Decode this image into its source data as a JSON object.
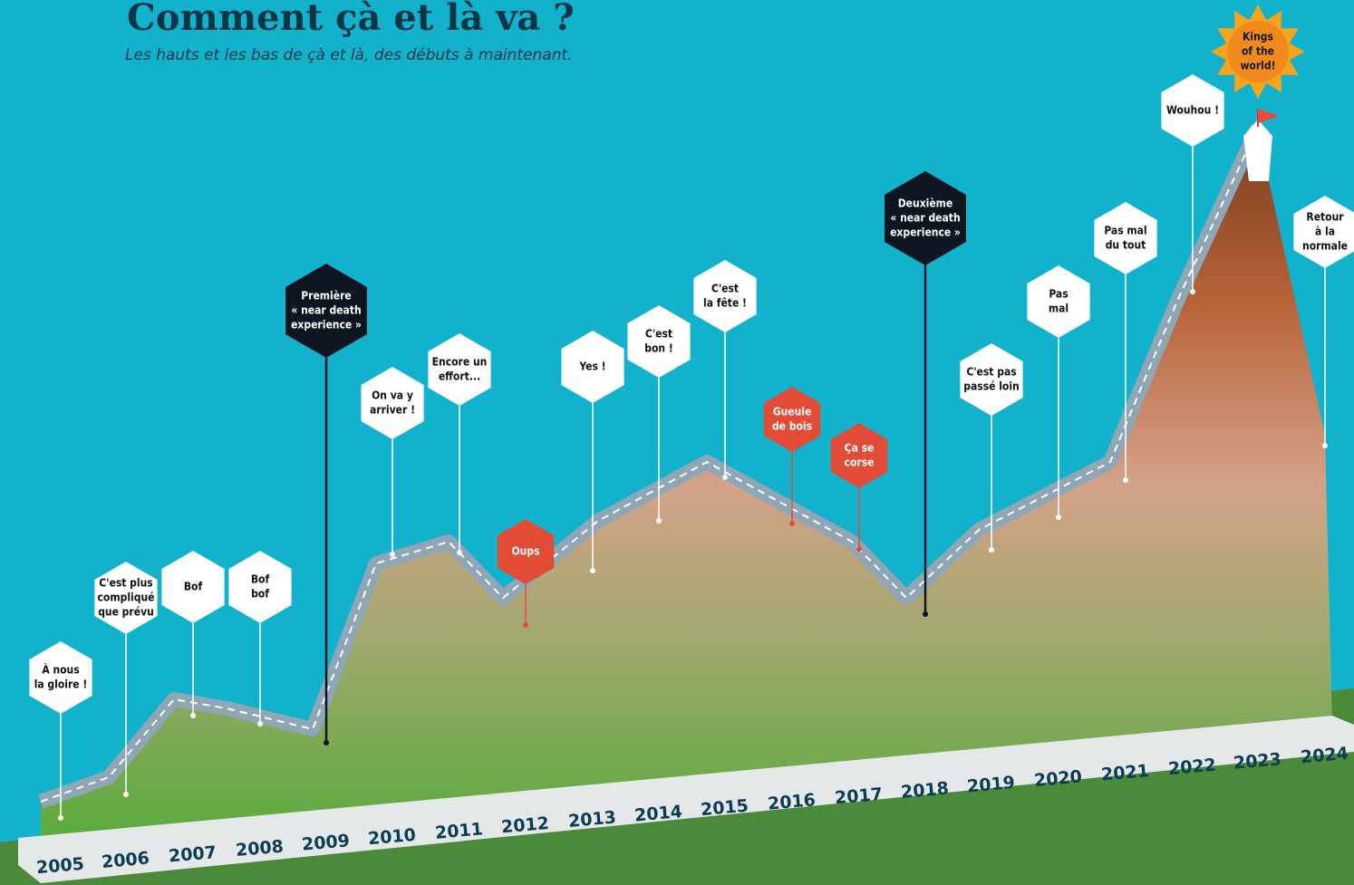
{
  "title": "Comment çà et là va ?",
  "subtitle": "Les hauts et les bas de çà et là, des débuts à maintenant.",
  "milestones": [
    {
      "year": "2005",
      "label": [
        "À nous",
        "la gloire !"
      ],
      "style": "light"
    },
    {
      "year": "2006",
      "label": [
        "C'est plus",
        "compliqué",
        "que prévu"
      ],
      "style": "light"
    },
    {
      "year": "2007",
      "label": [
        "Bof"
      ],
      "style": "light"
    },
    {
      "year": "2008",
      "label": [
        "Bof",
        "bof"
      ],
      "style": "light"
    },
    {
      "year": "2009",
      "label": [
        "Première",
        "« near death",
        "experience »"
      ],
      "style": "dark"
    },
    {
      "year": "2010",
      "label": [
        "On va y",
        "arriver !"
      ],
      "style": "light"
    },
    {
      "year": "2011",
      "label": [
        "Encore un",
        "effort..."
      ],
      "style": "light"
    },
    {
      "year": "2012",
      "label": [
        "Oups"
      ],
      "style": "red"
    },
    {
      "year": "2013",
      "label": [
        "Yes !"
      ],
      "style": "light"
    },
    {
      "year": "2014",
      "label": [
        "C'est",
        "bon !"
      ],
      "style": "light"
    },
    {
      "year": "2015",
      "label": [
        "C'est",
        "la fête !"
      ],
      "style": "light"
    },
    {
      "year": "2016",
      "label": [
        "Gueule",
        "de bois"
      ],
      "style": "red"
    },
    {
      "year": "2017",
      "label": [
        "Ça se",
        "corse"
      ],
      "style": "red"
    },
    {
      "year": "2018",
      "label": [
        "Deuxième",
        "« near death",
        "experience »"
      ],
      "style": "dark"
    },
    {
      "year": "2019",
      "label": [
        "C'est pas",
        "passé loin"
      ],
      "style": "light"
    },
    {
      "year": "2020",
      "label": [
        "Pas",
        "mal"
      ],
      "style": "light"
    },
    {
      "year": "2021",
      "label": [
        "Pas mal",
        "du tout"
      ],
      "style": "light"
    },
    {
      "year": "2022",
      "label": [
        "Wouhou !"
      ],
      "style": "light"
    },
    {
      "year": "2023",
      "label": [
        "Kings",
        "of the",
        "world!"
      ],
      "style": "sun"
    },
    {
      "year": "2024",
      "label": [
        "Retour",
        "à la",
        "normale"
      ],
      "style": "light"
    }
  ]
}
